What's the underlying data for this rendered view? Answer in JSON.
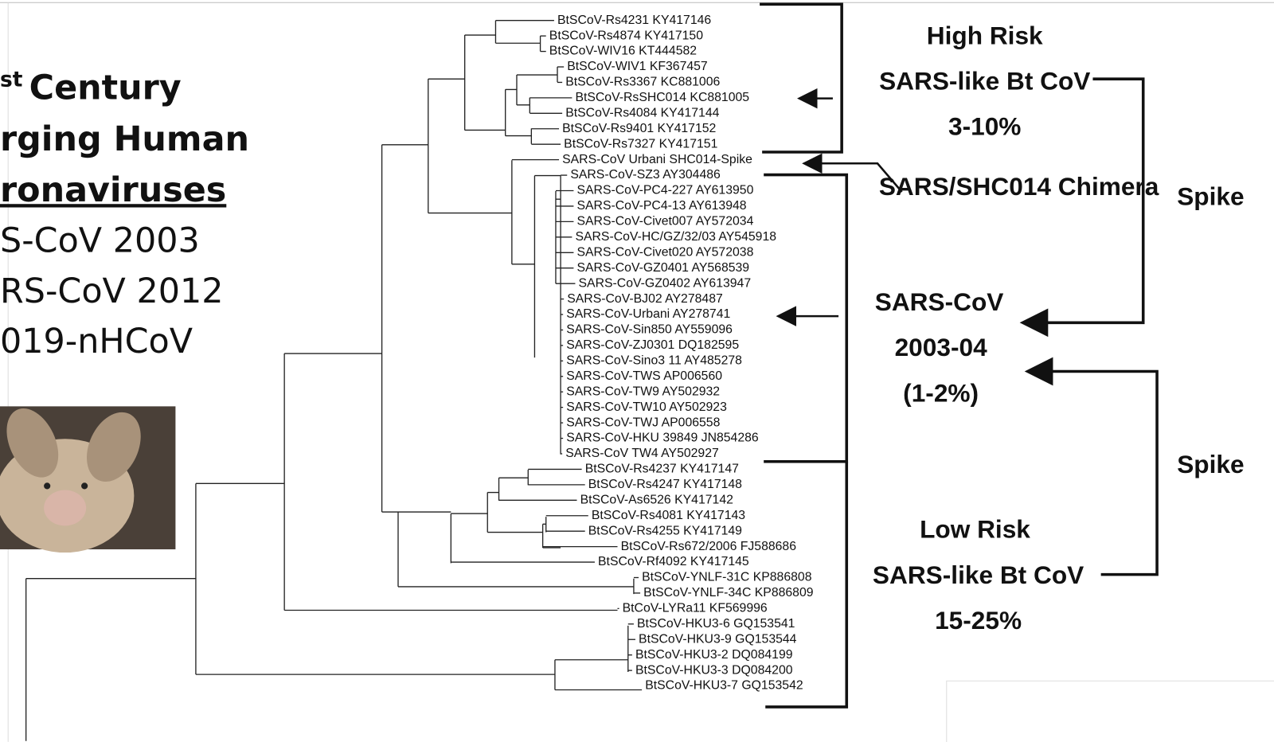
{
  "slide": {
    "heading_sup": "st",
    "heading_lines": [
      "Century",
      "rging Human",
      "ronaviruses"
    ],
    "list": [
      "S-CoV 2003",
      "RS-CoV 2012",
      "019-nHCoV"
    ]
  },
  "tree": {
    "leaves": [
      "BtSCoV-Rs4231 KY417146",
      "BtSCoV-Rs4874 KY417150",
      "BtSCoV-WIV16 KT444582",
      "BtSCoV-WIV1 KF367457",
      "BtSCoV-Rs3367 KC881006",
      "BtSCoV-RsSHC014 KC881005",
      "BtSCoV-Rs4084 KY417144",
      "BtSCoV-Rs9401 KY417152",
      "BtSCoV-Rs7327 KY417151",
      "SARS-CoV Urbani SHC014-Spike",
      "SARS-CoV-SZ3 AY304486",
      "SARS-CoV-PC4-227 AY613950",
      "SARS-CoV-PC4-13 AY613948",
      "SARS-CoV-Civet007 AY572034",
      "SARS-CoV-HC/GZ/32/03 AY545918",
      "SARS-CoV-Civet020 AY572038",
      "SARS-CoV-GZ0401 AY568539",
      "SARS-CoV-GZ0402 AY613947",
      "SARS-CoV-BJ02 AY278487",
      "SARS-CoV-Urbani AY278741",
      "SARS-CoV-Sin850 AY559096",
      "SARS-CoV-ZJ0301 DQ182595",
      "SARS-CoV-Sino3 11 AY485278",
      "SARS-CoV-TWS AP006560",
      "SARS-CoV-TW9 AY502932",
      "SARS-CoV-TW10 AY502923",
      "SARS-CoV-TWJ AP006558",
      "SARS-CoV-HKU 39849 JN854286",
      "SARS-CoV TW4 AY502927",
      "BtSCoV-Rs4237 KY417147",
      "BtSCoV-Rs4247 KY417148",
      "BtSCoV-As6526 KY417142",
      "BtSCoV-Rs4081 KY417143",
      "BtSCoV-Rs4255 KY417149",
      "BtSCoV-Rs672/2006 FJ588686",
      "BtSCoV-Rf4092 KY417145",
      "BtSCoV-YNLF-31C KP886808",
      "BtSCoV-YNLF-34C KP886809",
      "BtCoV-LYRa11 KF569996",
      "BtSCoV-HKU3-6 GQ153541",
      "BtSCoV-HKU3-9 GQ153544",
      "BtSCoV-HKU3-2 DQ084199",
      "BtSCoV-HKU3-3 DQ084200",
      "BtSCoV-HKU3-7 GQ153542"
    ]
  },
  "annotations": {
    "high_risk": [
      "High Risk",
      "SARS-like Bt CoV",
      "3-10%"
    ],
    "chimera": "SARS/SHC014 Chimera",
    "sars": [
      "SARS-CoV",
      "2003-04",
      "(1-2%)"
    ],
    "low_risk": [
      "Low Risk",
      "SARS-like Bt CoV",
      "15-25%"
    ],
    "spike": [
      "Spike",
      "Spike"
    ]
  }
}
